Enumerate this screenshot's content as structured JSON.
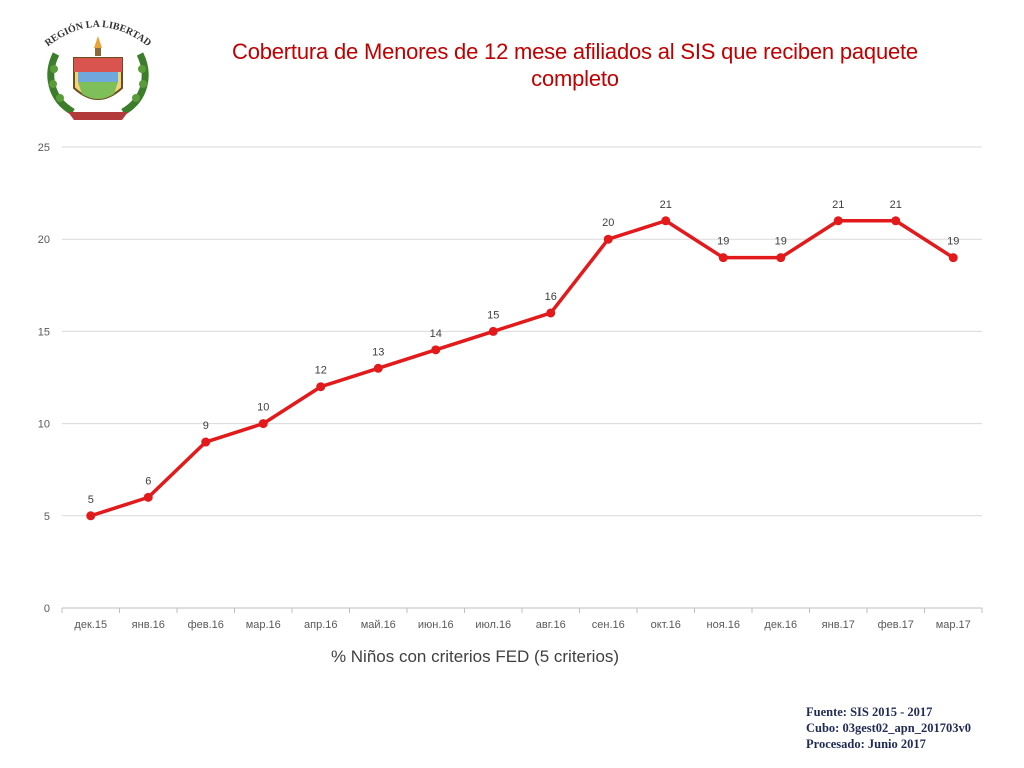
{
  "header": {
    "title": "Cobertura de Menores de 12 mese afiliados al SIS que reciben paquete completo",
    "logo_text": "REGIÓN LA LIBERTAD"
  },
  "footer": {
    "source_line1": "Fuente: SIS 2015 - 2017",
    "source_line2": "Cubo: 03gest02_apn_201703v0",
    "source_line3": "Procesado: Junio 2017"
  },
  "colors": {
    "title": "#c00000",
    "series": "#e31a1c",
    "grid": "#d9d9d9",
    "source": "#1f2a55"
  },
  "chart_data": {
    "type": "line",
    "title": "Cobertura de Menores de 12 mese afiliados al SIS que reciben paquete completo",
    "categories": [
      "дек.15",
      "янв.16",
      "фев.16",
      "мар.16",
      "апр.16",
      "май.16",
      "июн.16",
      "июл.16",
      "авг.16",
      "сен.16",
      "окт.16",
      "ноя.16",
      "дек.16",
      "янв.17",
      "фев.17",
      "мар.17"
    ],
    "series": [
      {
        "name": "% Niños con criterios FED (5 criterios)",
        "values": [
          5,
          6,
          9,
          10,
          12,
          13,
          14,
          15,
          16,
          20,
          21,
          19,
          19,
          21,
          21,
          19
        ],
        "color": "#e31a1c"
      }
    ],
    "ylim": [
      0,
      25
    ],
    "yticks": [
      0,
      5,
      10,
      15,
      20,
      25
    ],
    "grid": true,
    "legend_position": "bottom",
    "data_labels": true
  }
}
